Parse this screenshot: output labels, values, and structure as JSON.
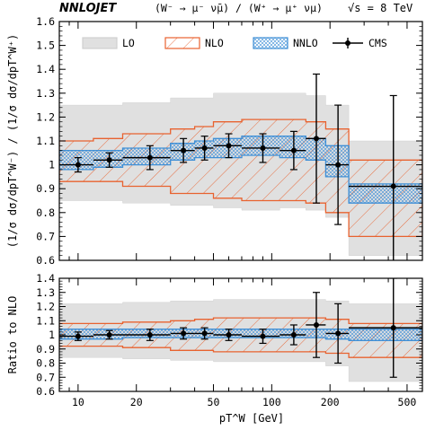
{
  "header": {
    "brand": "NNLOJET",
    "process": "(W⁻ → μ⁻ ν̄μ) / (W⁺ → μ⁺ νμ)",
    "energy": "√s = 8 TeV"
  },
  "colors": {
    "lo": "#e0e0e0",
    "nlo": "#e8622f",
    "nnlo": "#3f8fd6",
    "cms": "#000000"
  },
  "chart_data": [
    {
      "type": "area",
      "panel": "main",
      "xscale": "log",
      "xlim": [
        8,
        600
      ],
      "ylim": [
        0.6,
        1.6
      ],
      "ylabel": "(1/σ dσ/dpT^W⁻) / (1/σ dσ/dpT^W⁺)",
      "yticks": [
        "0.6",
        "0.7",
        "0.8",
        "0.9",
        "1",
        "1.1",
        "1.2",
        "1.3",
        "1.4",
        "1.5",
        "1.6"
      ],
      "legend": {
        "placement": "top",
        "entries": [
          "LO",
          "NLO",
          "NNLO",
          "CMS"
        ]
      },
      "bin_edges": [
        8,
        12,
        17,
        30,
        40,
        50,
        70,
        110,
        150,
        190,
        250,
        600
      ],
      "series": [
        {
          "name": "LO",
          "lower": [
            0.85,
            0.85,
            0.84,
            0.83,
            0.83,
            0.82,
            0.81,
            0.82,
            0.81,
            0.78,
            0.62
          ],
          "upper": [
            1.25,
            1.25,
            1.26,
            1.28,
            1.28,
            1.3,
            1.3,
            1.3,
            1.29,
            1.25,
            1.1
          ]
        },
        {
          "name": "NLO",
          "lower": [
            0.93,
            0.93,
            0.91,
            0.88,
            0.88,
            0.86,
            0.85,
            0.85,
            0.84,
            0.8,
            0.7
          ],
          "upper": [
            1.1,
            1.11,
            1.13,
            1.15,
            1.16,
            1.18,
            1.19,
            1.19,
            1.18,
            1.15,
            1.02
          ]
        },
        {
          "name": "NNLO",
          "lower": [
            0.98,
            0.99,
            1.0,
            1.02,
            1.03,
            1.03,
            1.04,
            1.03,
            1.02,
            0.95,
            0.84
          ],
          "upper": [
            1.06,
            1.06,
            1.07,
            1.09,
            1.1,
            1.11,
            1.12,
            1.12,
            1.11,
            1.08,
            0.92
          ]
        },
        {
          "name": "CMS",
          "x": [
            10,
            14.5,
            23.5,
            35,
            45,
            60,
            90,
            130,
            170,
            220,
            425
          ],
          "y": [
            1.0,
            1.02,
            1.03,
            1.06,
            1.07,
            1.08,
            1.07,
            1.06,
            1.11,
            1.0,
            0.91
          ],
          "yerr": [
            0.03,
            0.03,
            0.05,
            0.05,
            0.05,
            0.05,
            0.06,
            0.08,
            0.27,
            0.25,
            0.38
          ]
        }
      ]
    },
    {
      "type": "area",
      "panel": "ratio",
      "xscale": "log",
      "xlim": [
        8,
        600
      ],
      "ylim": [
        0.6,
        1.4
      ],
      "xlabel": "pT^W [GeV]",
      "ylabel": "Ratio to NLO",
      "xticks": [
        "10",
        "20",
        "50",
        "100",
        "200",
        "500"
      ],
      "yticks": [
        "0.6",
        "0.7",
        "0.8",
        "0.9",
        "1",
        "1.1",
        "1.2",
        "1.3",
        "1.4"
      ],
      "series": [
        {
          "name": "LO",
          "lower": [
            0.84,
            0.84,
            0.83,
            0.82,
            0.82,
            0.81,
            0.81,
            0.81,
            0.81,
            0.78,
            0.67
          ],
          "upper": [
            1.22,
            1.22,
            1.23,
            1.24,
            1.24,
            1.25,
            1.25,
            1.25,
            1.25,
            1.24,
            1.22
          ]
        },
        {
          "name": "NLO",
          "lower": [
            0.92,
            0.92,
            0.91,
            0.89,
            0.89,
            0.88,
            0.88,
            0.88,
            0.88,
            0.87,
            0.84
          ],
          "upper": [
            1.08,
            1.08,
            1.09,
            1.1,
            1.11,
            1.12,
            1.12,
            1.12,
            1.12,
            1.11,
            1.08
          ]
        },
        {
          "name": "NNLO",
          "lower": [
            0.97,
            0.97,
            0.98,
            0.98,
            0.98,
            0.98,
            0.98,
            0.98,
            0.98,
            0.97,
            0.96
          ],
          "upper": [
            1.04,
            1.04,
            1.04,
            1.04,
            1.04,
            1.04,
            1.04,
            1.04,
            1.04,
            1.04,
            1.04
          ]
        },
        {
          "name": "CMS",
          "x": [
            10,
            14.5,
            23.5,
            35,
            45,
            60,
            90,
            130,
            170,
            220,
            425
          ],
          "y": [
            0.99,
            1.0,
            1.0,
            1.01,
            1.01,
            1.0,
            0.99,
            1.0,
            1.07,
            1.01,
            1.05
          ],
          "yerr": [
            0.03,
            0.03,
            0.04,
            0.04,
            0.04,
            0.04,
            0.05,
            0.07,
            0.23,
            0.21,
            0.35
          ]
        }
      ]
    }
  ]
}
